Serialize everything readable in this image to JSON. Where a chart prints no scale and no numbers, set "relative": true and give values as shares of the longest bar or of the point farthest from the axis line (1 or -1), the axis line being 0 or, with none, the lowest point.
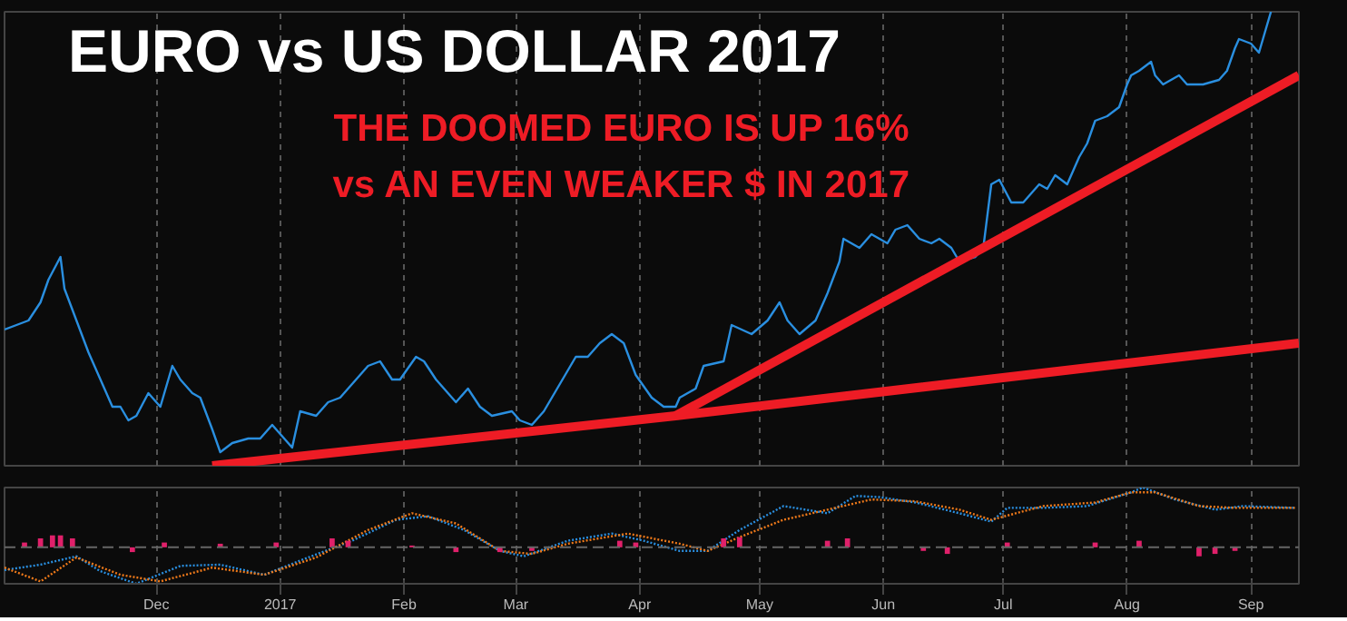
{
  "chart_data": [
    {
      "type": "line",
      "title": "EURO vs US DOLLAR 2017",
      "relative": true,
      "grid": "x",
      "tick_labels": false,
      "annotations": [
        "THE DOOMED EURO IS UP 16%",
        "vs AN EVEN WEAKER $ IN 2017"
      ],
      "xlim": [
        "2016-10-24",
        "2017-09-13"
      ],
      "xticks": [
        {
          "value": "2016-12-01",
          "label": null
        },
        {
          "value": "2017-01-01",
          "label": null
        },
        {
          "value": "2017-02-01",
          "label": null
        },
        {
          "value": "2017-03-01",
          "label": null
        },
        {
          "value": "2017-04-01",
          "label": null
        },
        {
          "value": "2017-05-01",
          "label": null
        },
        {
          "value": "2017-06-01",
          "label": null
        },
        {
          "value": "2017-07-01",
          "label": null
        },
        {
          "value": "2017-08-01",
          "label": null
        },
        {
          "value": "2017-09-01",
          "label": null
        }
      ],
      "x": [
        "2016-10-24",
        "2016-10-30",
        "2016-11-02",
        "2016-11-04",
        "2016-11-07",
        "2016-11-08",
        "2016-11-11",
        "2016-11-14",
        "2016-11-17",
        "2016-11-20",
        "2016-11-22",
        "2016-11-24",
        "2016-11-26",
        "2016-11-29",
        "2016-12-02",
        "2016-12-05",
        "2016-12-07",
        "2016-12-10",
        "2016-12-12",
        "2016-12-15",
        "2016-12-17",
        "2016-12-20",
        "2016-12-24",
        "2016-12-27",
        "2016-12-30",
        "2017-01-01",
        "2017-01-04",
        "2017-01-06",
        "2017-01-10",
        "2017-01-13",
        "2017-01-16",
        "2017-01-20",
        "2017-01-23",
        "2017-01-26",
        "2017-01-29",
        "2017-01-31",
        "2017-02-04",
        "2017-02-06",
        "2017-02-09",
        "2017-02-14",
        "2017-02-17",
        "2017-02-20",
        "2017-02-23",
        "2017-02-28",
        "2017-03-02",
        "2017-03-05",
        "2017-03-08",
        "2017-03-12",
        "2017-03-16",
        "2017-03-19",
        "2017-03-22",
        "2017-03-25",
        "2017-03-28",
        "2017-03-31",
        "2017-04-04",
        "2017-04-07",
        "2017-04-10",
        "2017-04-11",
        "2017-04-15",
        "2017-04-17",
        "2017-04-22",
        "2017-04-24",
        "2017-04-29",
        "2017-05-03",
        "2017-05-06",
        "2017-05-08",
        "2017-05-11",
        "2017-05-15",
        "2017-05-18",
        "2017-05-21",
        "2017-05-22",
        "2017-05-26",
        "2017-05-29",
        "2017-06-02",
        "2017-06-04",
        "2017-06-07",
        "2017-06-10",
        "2017-06-13",
        "2017-06-15",
        "2017-06-18",
        "2017-06-20",
        "2017-06-24",
        "2017-06-26",
        "2017-06-28",
        "2017-06-30",
        "2017-07-03",
        "2017-07-06",
        "2017-07-10",
        "2017-07-12",
        "2017-07-14",
        "2017-07-17",
        "2017-07-20",
        "2017-07-22",
        "2017-07-24",
        "2017-07-27",
        "2017-07-30",
        "2017-08-01",
        "2017-08-02",
        "2017-08-04",
        "2017-08-07",
        "2017-08-08",
        "2017-08-10",
        "2017-08-14",
        "2017-08-16",
        "2017-08-18",
        "2017-08-20",
        "2017-08-24",
        "2017-08-26",
        "2017-08-28",
        "2017-08-29",
        "2017-09-01",
        "2017-09-03",
        "2017-09-04",
        "2017-09-06"
      ],
      "series": [
        {
          "color": "#2a8fe0",
          "values": [
            0.3,
            0.32,
            0.36,
            0.41,
            0.46,
            0.39,
            0.32,
            0.25,
            0.19,
            0.13,
            0.13,
            0.1,
            0.11,
            0.16,
            0.13,
            0.22,
            0.19,
            0.16,
            0.15,
            0.08,
            0.03,
            0.05,
            0.06,
            0.06,
            0.09,
            0.07,
            0.04,
            0.12,
            0.11,
            0.14,
            0.15,
            0.19,
            0.22,
            0.23,
            0.19,
            0.19,
            0.24,
            0.23,
            0.19,
            0.14,
            0.17,
            0.13,
            0.11,
            0.12,
            0.1,
            0.09,
            0.12,
            0.18,
            0.24,
            0.24,
            0.27,
            0.29,
            0.27,
            0.2,
            0.15,
            0.13,
            0.13,
            0.15,
            0.17,
            0.22,
            0.23,
            0.31,
            0.29,
            0.32,
            0.36,
            0.32,
            0.29,
            0.32,
            0.38,
            0.45,
            0.5,
            0.48,
            0.51,
            0.49,
            0.52,
            0.53,
            0.5,
            0.49,
            0.5,
            0.48,
            0.45,
            0.46,
            0.48,
            0.62,
            0.63,
            0.58,
            0.58,
            0.62,
            0.61,
            0.64,
            0.62,
            0.68,
            0.71,
            0.76,
            0.77,
            0.79,
            0.84,
            0.86,
            0.87,
            0.89,
            0.86,
            0.84,
            0.86,
            0.84,
            0.84,
            0.84,
            0.85,
            0.87,
            0.92,
            0.94,
            0.93,
            0.91,
            0.94,
            1.0
          ]
        },
        {
          "type": "line",
          "color": "#ee1c25",
          "x": [
            "2016-12-15",
            "2017-04-10",
            "2017-09-13"
          ],
          "values": [
            0,
            0.11,
            0.27
          ]
        },
        {
          "type": "line",
          "color": "#ee1c25",
          "x": [
            "2017-04-10",
            "2017-09-13"
          ],
          "values": [
            0.11,
            0.86
          ]
        }
      ]
    },
    {
      "type": "line",
      "relative": true,
      "grid": "x",
      "tick_labels": "x",
      "ref_lines": [
        {
          "axis": "y",
          "value": 0
        }
      ],
      "xlim": [
        "2016-10-24",
        "2017-09-13"
      ],
      "xticks": [
        {
          "value": "2016-12-01",
          "label": "Dec"
        },
        {
          "value": "2017-01-01",
          "label": "2017"
        },
        {
          "value": "2017-02-01",
          "label": "Feb"
        },
        {
          "value": "2017-03-01",
          "label": "Mar"
        },
        {
          "value": "2017-04-01",
          "label": "Apr"
        },
        {
          "value": "2017-05-01",
          "label": "May"
        },
        {
          "value": "2017-06-01",
          "label": "Jun"
        },
        {
          "value": "2017-07-01",
          "label": "Jul"
        },
        {
          "value": "2017-08-01",
          "label": "Aug"
        },
        {
          "value": "2017-09-01",
          "label": "Sep"
        }
      ],
      "series": [
        {
          "type": "bar",
          "color": "#e0206a",
          "x": [
            "2016-10-29",
            "2016-11-02",
            "2016-11-05",
            "2016-11-07",
            "2016-11-10",
            "2016-11-25",
            "2016-12-03",
            "2016-12-17",
            "2016-12-31",
            "2017-01-14",
            "2017-01-18",
            "2017-02-03",
            "2017-02-14",
            "2017-02-25",
            "2017-03-05",
            "2017-03-27",
            "2017-03-31",
            "2017-04-22",
            "2017-04-26",
            "2017-05-18",
            "2017-05-23",
            "2017-06-11",
            "2017-06-17",
            "2017-07-02",
            "2017-07-24",
            "2017-08-04",
            "2017-08-19",
            "2017-08-23",
            "2017-08-28"
          ],
          "values": [
            0.08,
            0.15,
            0.2,
            0.2,
            0.15,
            -0.08,
            0.08,
            0.06,
            0.08,
            0.15,
            0.11,
            0.03,
            -0.08,
            -0.08,
            -0.06,
            0.11,
            0.08,
            0.15,
            0.17,
            0.11,
            0.15,
            -0.06,
            -0.11,
            0.08,
            0.08,
            0.11,
            -0.15,
            -0.11,
            -0.06
          ]
        },
        {
          "type": "line",
          "color": "#2a8fe0",
          "line_style": "dotted",
          "x": [
            "2016-10-24",
            "2016-11-02",
            "2016-11-11",
            "2016-11-17",
            "2016-11-26",
            "2016-12-07",
            "2016-12-17",
            "2016-12-28",
            "2017-01-08",
            "2017-01-19",
            "2017-01-30",
            "2017-02-07",
            "2017-02-16",
            "2017-02-25",
            "2017-03-03",
            "2017-03-14",
            "2017-03-25",
            "2017-04-02",
            "2017-04-11",
            "2017-04-18",
            "2017-04-26",
            "2017-05-07",
            "2017-05-18",
            "2017-05-25",
            "2017-05-31",
            "2017-06-09",
            "2017-06-20",
            "2017-06-28",
            "2017-07-02",
            "2017-07-11",
            "2017-07-22",
            "2017-08-02",
            "2017-08-05",
            "2017-08-13",
            "2017-08-23",
            "2017-08-30",
            "2017-09-12"
          ],
          "values": [
            -0.38,
            -0.29,
            -0.15,
            -0.4,
            -0.61,
            -0.31,
            -0.29,
            -0.46,
            -0.17,
            0.11,
            0.46,
            0.52,
            0.29,
            -0.06,
            -0.15,
            0.11,
            0.23,
            0.11,
            -0.06,
            -0.06,
            0.29,
            0.69,
            0.57,
            0.86,
            0.84,
            0.75,
            0.57,
            0.43,
            0.66,
            0.66,
            0.69,
            0.92,
            1.0,
            0.8,
            0.63,
            0.69,
            0.66
          ]
        },
        {
          "type": "line",
          "color": "#f07a1a",
          "line_style": "dotted",
          "x": [
            "2016-10-24",
            "2016-11-02",
            "2016-11-11",
            "2016-11-22",
            "2016-12-02",
            "2016-12-15",
            "2016-12-28",
            "2017-01-10",
            "2017-01-23",
            "2017-02-03",
            "2017-02-14",
            "2017-02-25",
            "2017-03-05",
            "2017-03-14",
            "2017-03-29",
            "2017-04-11",
            "2017-04-18",
            "2017-04-26",
            "2017-05-07",
            "2017-05-18",
            "2017-05-29",
            "2017-06-09",
            "2017-06-20",
            "2017-06-28",
            "2017-07-11",
            "2017-07-24",
            "2017-08-02",
            "2017-08-08",
            "2017-08-19",
            "2017-08-28",
            "2017-09-12"
          ],
          "values": [
            -0.34,
            -0.57,
            -0.17,
            -0.46,
            -0.57,
            -0.34,
            -0.46,
            -0.17,
            0.29,
            0.57,
            0.4,
            -0.06,
            -0.11,
            0.06,
            0.23,
            0.06,
            -0.06,
            0.17,
            0.46,
            0.63,
            0.8,
            0.77,
            0.63,
            0.46,
            0.69,
            0.75,
            0.92,
            0.92,
            0.69,
            0.66,
            0.66
          ]
        }
      ]
    }
  ]
}
